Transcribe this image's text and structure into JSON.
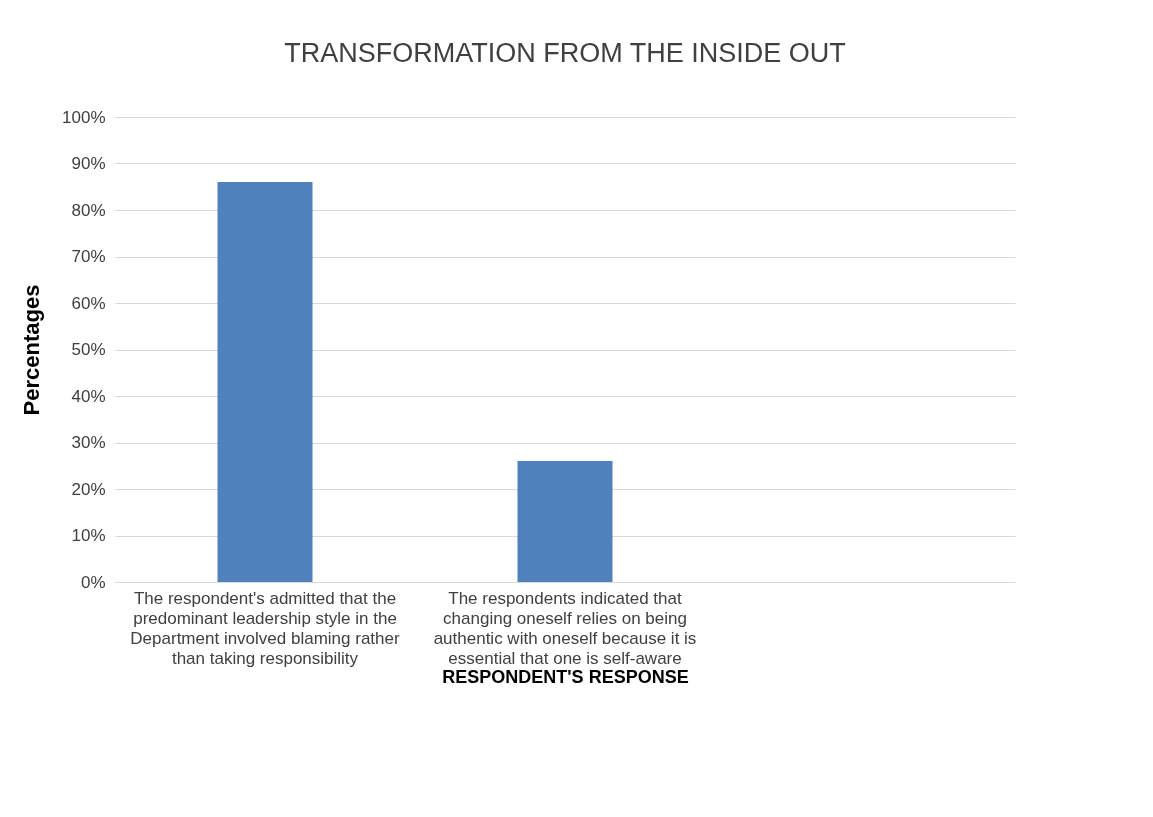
{
  "chart_data": {
    "type": "bar",
    "title": "TRANSFORMATION FROM THE INSIDE OUT",
    "xlabel": "RESPONDENT'S RESPONSE",
    "ylabel": "Percentages",
    "categories": [
      "The respondent's admitted that the predominant leadership style in the Department involved blaming rather than taking responsibility",
      "The respondents indicated that changing oneself relies on being authentic with oneself because it is essential that one is self-aware",
      null
    ],
    "values": [
      86,
      26,
      null
    ],
    "color": "#4f81bd",
    "ylim": [
      0,
      100
    ],
    "yticks": [
      {
        "value": 0,
        "label": "0%"
      },
      {
        "value": 10,
        "label": "10%"
      },
      {
        "value": 20,
        "label": "20%"
      },
      {
        "value": 30,
        "label": "30%"
      },
      {
        "value": 40,
        "label": "40%"
      },
      {
        "value": 50,
        "label": "50%"
      },
      {
        "value": 60,
        "label": "60%"
      },
      {
        "value": 70,
        "label": "70%"
      },
      {
        "value": 80,
        "label": "80%"
      },
      {
        "value": 90,
        "label": "90%"
      },
      {
        "value": 100,
        "label": "100%"
      }
    ],
    "grid": "y"
  }
}
